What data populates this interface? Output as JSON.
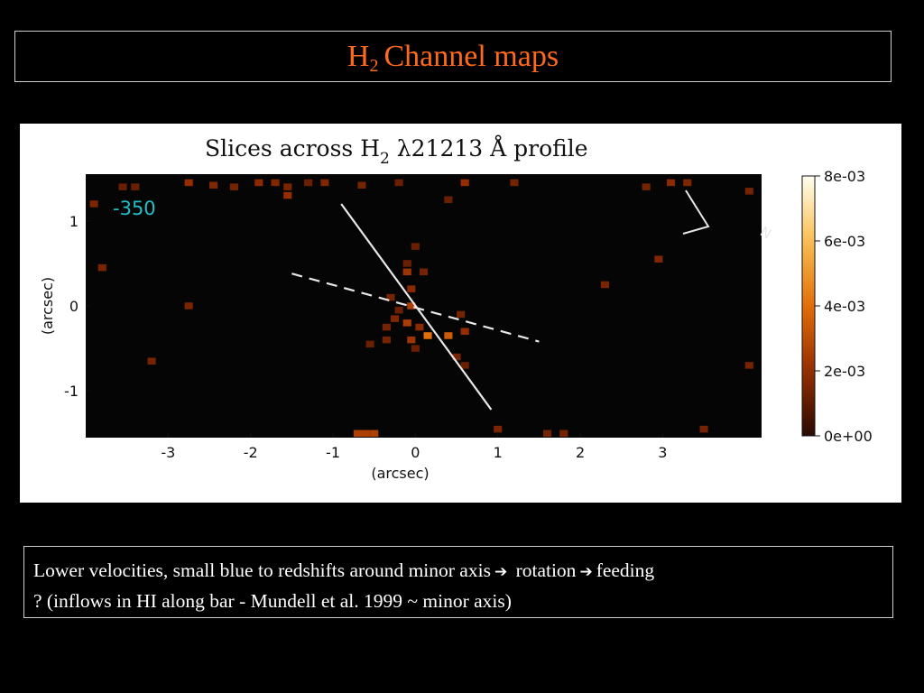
{
  "slide": {
    "title_main": "H",
    "title_sub": "2",
    "title_rest": "Channel maps"
  },
  "caption": {
    "part1": "Lower velocities, small blue to redshifts around minor axis",
    "part2": "rotation",
    "part3": "feeding",
    "part4": "? (inflows in HI along bar - Mundell et al. 1999 ~  minor axis)",
    "arrow_icon": "right-arrow-icon"
  },
  "colors": {
    "title": "#ff6a1a",
    "velocity_label": "#20c0c8",
    "plot_bg": "#050505",
    "slit": "#e8e8e8"
  },
  "chart_data": {
    "type": "heatmap",
    "title_main": "Slices across H",
    "title_sub": "2",
    "title_rest": " λ21213 Å  profile",
    "xlabel": "(arcsec)",
    "ylabel": "(arcsec)",
    "xlim": [
      -4.0,
      4.2
    ],
    "ylim": [
      -1.55,
      1.55
    ],
    "x_ticks": [
      "-3",
      "-2",
      "-1",
      "0",
      "1",
      "2",
      "3"
    ],
    "y_ticks": [
      "1",
      "0",
      "-1"
    ],
    "velocity_label": "-350",
    "colorbar": {
      "min": 0,
      "max": 0.008,
      "ticks": [
        "8e-03",
        "6e-03",
        "4e-03",
        "2e-03",
        "0e+00"
      ]
    },
    "orientation_label": "N",
    "pixels": [
      [
        -3.9,
        1.2,
        0.0015
      ],
      [
        -3.55,
        1.4,
        0.0012
      ],
      [
        -3.4,
        1.4,
        0.0012
      ],
      [
        -3.8,
        0.45,
        0.0015
      ],
      [
        -2.75,
        1.45,
        0.002
      ],
      [
        -2.45,
        1.42,
        0.0016
      ],
      [
        -2.2,
        1.4,
        0.0014
      ],
      [
        -1.9,
        1.45,
        0.0018
      ],
      [
        -1.7,
        1.45,
        0.0016
      ],
      [
        -1.55,
        1.3,
        0.002
      ],
      [
        -1.55,
        1.4,
        0.0015
      ],
      [
        -1.3,
        1.45,
        0.0012
      ],
      [
        -1.1,
        1.45,
        0.0016
      ],
      [
        -0.65,
        1.42,
        0.0014
      ],
      [
        -0.2,
        1.45,
        0.0012
      ],
      [
        0.4,
        1.25,
        0.0012
      ],
      [
        0.6,
        1.45,
        0.002
      ],
      [
        1.2,
        1.45,
        0.0014
      ],
      [
        2.8,
        1.4,
        0.0014
      ],
      [
        3.1,
        1.45,
        0.0018
      ],
      [
        3.3,
        1.45,
        0.0016
      ],
      [
        4.05,
        1.35,
        0.0014
      ],
      [
        2.95,
        0.55,
        0.0016
      ],
      [
        2.3,
        0.25,
        0.0015
      ],
      [
        -2.75,
        0.0,
        0.0015
      ],
      [
        -3.2,
        -0.65,
        0.0014
      ],
      [
        4.05,
        -0.7,
        0.0014
      ],
      [
        0.0,
        0.7,
        0.0012
      ],
      [
        -0.1,
        0.5,
        0.0012
      ],
      [
        -0.1,
        0.4,
        0.0022
      ],
      [
        0.1,
        0.4,
        0.0014
      ],
      [
        -0.05,
        0.2,
        0.0018
      ],
      [
        -0.3,
        0.1,
        0.0014
      ],
      [
        -0.05,
        0.0,
        0.0025
      ],
      [
        -0.2,
        -0.05,
        0.0012
      ],
      [
        -0.25,
        -0.15,
        0.0016
      ],
      [
        -0.1,
        -0.2,
        0.0025
      ],
      [
        0.05,
        -0.25,
        0.0018
      ],
      [
        -0.35,
        -0.25,
        0.0014
      ],
      [
        0.15,
        -0.35,
        0.004
      ],
      [
        0.4,
        -0.35,
        0.0034
      ],
      [
        0.55,
        -0.1,
        0.0014
      ],
      [
        0.6,
        -0.3,
        0.002
      ],
      [
        -0.05,
        -0.4,
        0.0022
      ],
      [
        -0.35,
        -0.4,
        0.0014
      ],
      [
        -0.55,
        -0.45,
        0.0012
      ],
      [
        0.0,
        -0.5,
        0.0012
      ],
      [
        0.5,
        -0.6,
        0.0014
      ],
      [
        0.6,
        -0.7,
        0.0012
      ],
      [
        -0.7,
        -1.5,
        0.0026
      ],
      [
        -0.6,
        -1.5,
        0.0026
      ],
      [
        -0.5,
        -1.5,
        0.0026
      ],
      [
        1.0,
        -1.45,
        0.0015
      ],
      [
        1.6,
        -1.5,
        0.0014
      ],
      [
        1.8,
        -1.5,
        0.0014
      ],
      [
        3.5,
        -1.45,
        0.0014
      ]
    ],
    "slits": [
      {
        "style": "solid",
        "from": [
          -0.9,
          1.2
        ],
        "to": [
          0.92,
          -1.22
        ]
      },
      {
        "style": "dashed",
        "from": [
          -1.5,
          0.38
        ],
        "to": [
          1.5,
          -0.42
        ]
      }
    ]
  }
}
